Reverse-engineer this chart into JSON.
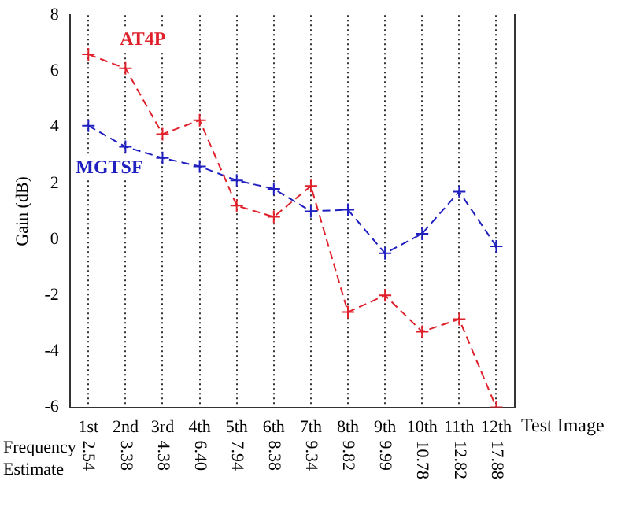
{
  "chart_data": {
    "type": "line",
    "xlabel": "Test Image",
    "ylabel": "Gain (dB)",
    "categories": [
      "1st",
      "2nd",
      "3rd",
      "4th",
      "5th",
      "6th",
      "7th",
      "8th",
      "9th",
      "10th",
      "11th",
      "12th"
    ],
    "series": [
      {
        "name": "AT4P",
        "color": "#e0202a",
        "values": [
          6.6,
          6.1,
          3.75,
          4.25,
          1.2,
          0.8,
          1.9,
          -2.6,
          -2.0,
          -3.3,
          -2.85,
          -6.0
        ]
      },
      {
        "name": "MGTSF",
        "color": "#2020c0",
        "values": [
          4.05,
          3.3,
          2.9,
          2.6,
          2.1,
          1.8,
          1.0,
          1.05,
          -0.5,
          0.2,
          1.7,
          -0.25
        ]
      }
    ],
    "ylim": [
      -6,
      8
    ],
    "yticks": [
      -6,
      -4,
      -2,
      0,
      2,
      4,
      6,
      8
    ],
    "grid": "x",
    "marker": "cross",
    "line_style": "dashed",
    "annotations": [
      "Frequency",
      "Estimate",
      "2.54",
      "3.38",
      "4.38",
      "6.40",
      "7.94",
      "8.38",
      "9.34",
      "9.82",
      "9.99",
      "10.78",
      "12.82",
      "17.88"
    ]
  }
}
